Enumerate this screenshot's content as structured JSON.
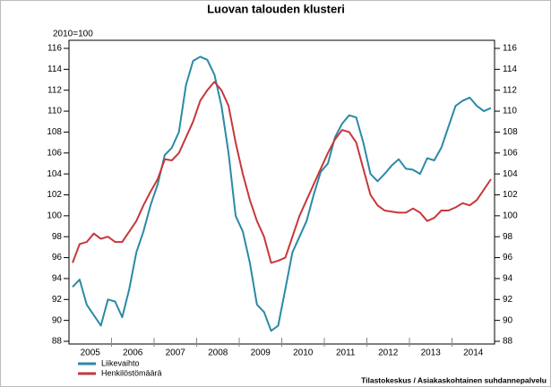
{
  "chart_data": {
    "type": "line",
    "title": "Luovan talouden klusteri",
    "y_label": "2010=100",
    "source": "Tilastokeskus / Asiakaskohtainen suhdannepalvelu",
    "categories": [
      null,
      null,
      "2005",
      null,
      null,
      null,
      null,
      null,
      "2006",
      null,
      null,
      null,
      null,
      null,
      "2007",
      null,
      null,
      null,
      null,
      null,
      "2008",
      null,
      null,
      null,
      null,
      null,
      "2009",
      null,
      null,
      null,
      null,
      null,
      "2010",
      null,
      null,
      null,
      null,
      null,
      "2011",
      null,
      null,
      null,
      null,
      null,
      "2012",
      null,
      null,
      null,
      null,
      null,
      "2013",
      null,
      null,
      null,
      null,
      null,
      "2014",
      null,
      null,
      null
    ],
    "series": [
      {
        "name": "Liikevaihto",
        "color": "#2a8aa6",
        "values": [
          93.2,
          93.9,
          91.5,
          90.5,
          89.5,
          92.0,
          91.8,
          90.3,
          93.0,
          96.5,
          98.5,
          101.0,
          103.0,
          105.8,
          106.5,
          108.0,
          112.5,
          114.8,
          115.2,
          114.9,
          113.5,
          110.5,
          106.0,
          100.0,
          98.5,
          95.5,
          91.5,
          90.8,
          89.0,
          89.5,
          93.0,
          96.5,
          98.0,
          99.5,
          102.0,
          104.2,
          105.0,
          107.5,
          108.8,
          109.6,
          109.4,
          107.0,
          104.0,
          103.3,
          104.0,
          104.8,
          105.4,
          104.5,
          104.4,
          104.0,
          105.5,
          105.3,
          106.5,
          108.5,
          110.5,
          111.0,
          111.3,
          110.5,
          110.0,
          110.3
        ]
      },
      {
        "name": "Henkilöstömäärä",
        "color": "#c8373a",
        "values": [
          95.5,
          97.3,
          97.5,
          98.3,
          97.8,
          98.0,
          97.5,
          97.5,
          98.5,
          99.5,
          101.0,
          102.3,
          103.5,
          105.4,
          105.3,
          106.0,
          107.5,
          109.0,
          111.0,
          112.0,
          112.8,
          112.0,
          110.5,
          107.0,
          104.0,
          101.5,
          99.5,
          98.0,
          95.5,
          95.7,
          96.0,
          98.0,
          100.0,
          101.5,
          103.0,
          104.5,
          106.0,
          107.3,
          108.2,
          108.0,
          107.0,
          104.5,
          102.0,
          101.0,
          100.5,
          100.4,
          100.3,
          100.3,
          100.7,
          100.3,
          99.5,
          99.8,
          100.5,
          100.5,
          100.8,
          101.2,
          101.0,
          101.5,
          102.5,
          103.5
        ]
      }
    ],
    "ylim": [
      88,
      116
    ],
    "yticks": [
      88,
      90,
      92,
      94,
      96,
      98,
      100,
      102,
      104,
      106,
      108,
      110,
      112,
      114,
      116
    ],
    "right_axis": true,
    "legend": "bottom-left"
  }
}
